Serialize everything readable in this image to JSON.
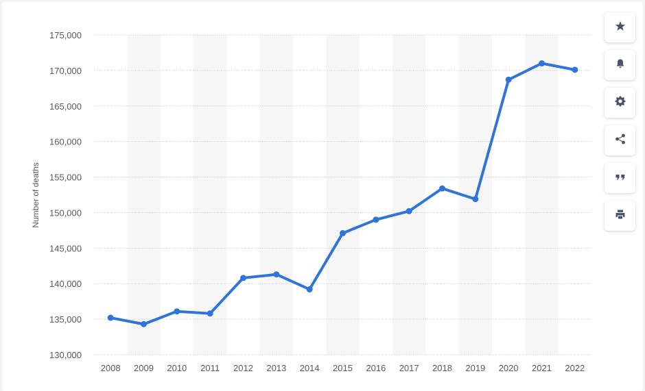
{
  "chart_data": {
    "type": "line",
    "title": "",
    "xlabel": "",
    "ylabel": "Number of deaths",
    "categories": [
      "2008",
      "2009",
      "2010",
      "2011",
      "2012",
      "2013",
      "2014",
      "2015",
      "2016",
      "2017",
      "2018",
      "2019",
      "2020",
      "2021",
      "2022"
    ],
    "series": [
      {
        "values": [
          135200,
          134300,
          136100,
          135800,
          140800,
          141300,
          139200,
          147100,
          149000,
          150200,
          153400,
          151900,
          168700,
          171000,
          170100
        ]
      }
    ],
    "ylim": [
      130000,
      175000
    ],
    "yticks": [
      130000,
      135000,
      140000,
      145000,
      150000,
      155000,
      160000,
      165000,
      170000,
      175000
    ],
    "ytick_labels": [
      "130,000",
      "135,000",
      "140,000",
      "145,000",
      "150,000",
      "155,000",
      "160,000",
      "165,000",
      "170,000",
      "175,000"
    ],
    "grid": true,
    "alternating_column_bands": true,
    "line_color": "#2f74d8",
    "band_color": "#f6f6f6",
    "grid_color": "#c8c8c8"
  },
  "toolbar": {
    "buttons": [
      {
        "name": "star-button",
        "icon": "star-icon"
      },
      {
        "name": "notification-button",
        "icon": "bell-icon"
      },
      {
        "name": "settings-button",
        "icon": "gear-icon"
      },
      {
        "name": "share-button",
        "icon": "share-icon"
      },
      {
        "name": "cite-button",
        "icon": "quote-icon"
      },
      {
        "name": "print-button",
        "icon": "print-icon"
      }
    ]
  }
}
